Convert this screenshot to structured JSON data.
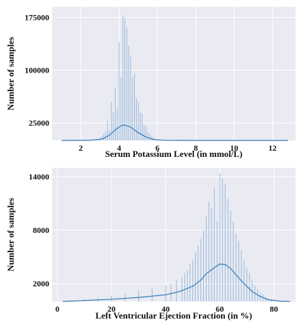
{
  "colors": {
    "background": "#eaeaf2",
    "bar": "#4c8fc7",
    "kde": "#2f78b5",
    "grid": "#ffffff"
  },
  "chart_data": [
    {
      "type": "histogram",
      "title": "",
      "xlabel": "Serum Potassium Level (in mmol/L)",
      "ylabel": "Number of samples",
      "xlim": [
        0.5,
        13.2
      ],
      "ylim": [
        0,
        190000
      ],
      "xticks": [
        2,
        4,
        6,
        8,
        10,
        12
      ],
      "yticks": [
        25000,
        100000,
        175000
      ],
      "grid": true,
      "bars": {
        "x": [
          1.0,
          2.0,
          2.5,
          2.8,
          3.0,
          3.1,
          3.2,
          3.3,
          3.4,
          3.5,
          3.6,
          3.7,
          3.8,
          3.9,
          4.0,
          4.1,
          4.2,
          4.3,
          4.4,
          4.5,
          4.6,
          4.7,
          4.8,
          4.9,
          5.0,
          5.1,
          5.2,
          5.3,
          5.4,
          5.5,
          5.6,
          5.7,
          5.8,
          6.0,
          6.2,
          6.5,
          7.0
        ],
        "values": [
          300,
          800,
          1500,
          3000,
          4500,
          6000,
          9000,
          13000,
          28000,
          15000,
          55000,
          40000,
          75000,
          45000,
          140000,
          90000,
          178000,
          175000,
          160000,
          135000,
          120000,
          90000,
          95000,
          60000,
          55000,
          40000,
          38000,
          22000,
          20000,
          12000,
          10000,
          6000,
          4000,
          2000,
          1000,
          500,
          200
        ]
      },
      "kde": {
        "x": [
          1,
          2,
          2.5,
          3,
          3.2,
          3.4,
          3.6,
          3.8,
          4.0,
          4.2,
          4.4,
          4.6,
          4.8,
          5.0,
          5.2,
          5.4,
          5.6,
          5.8,
          6.0,
          6.5,
          7,
          8,
          10,
          12,
          12.8
        ],
        "values": [
          0,
          50,
          300,
          1500,
          3000,
          6000,
          10000,
          15000,
          19000,
          22000,
          21000,
          19000,
          15000,
          11000,
          8000,
          5000,
          3000,
          1500,
          800,
          200,
          50,
          0,
          0,
          0,
          0
        ]
      }
    },
    {
      "type": "histogram",
      "title": "",
      "xlabel": "Left Ventricular Ejection Fraction (in %)",
      "ylabel": "Number of samples",
      "xlim": [
        -2,
        88
      ],
      "ylim": [
        0,
        15000
      ],
      "xticks": [
        0,
        20,
        40,
        60,
        80
      ],
      "yticks": [
        2000,
        8000,
        14000
      ],
      "grid": true,
      "bars": {
        "x": [
          5,
          10,
          15,
          20,
          25,
          30,
          35,
          40,
          42,
          44,
          46,
          47,
          48,
          49,
          50,
          51,
          52,
          53,
          54,
          55,
          56,
          57,
          58,
          59,
          60,
          61,
          62,
          63,
          64,
          65,
          66,
          67,
          68,
          69,
          70,
          71,
          72,
          73,
          74,
          75,
          76,
          77,
          78,
          79,
          80
        ],
        "values": [
          150,
          250,
          400,
          650,
          900,
          1200,
          1500,
          1800,
          2000,
          2400,
          2700,
          3200,
          3500,
          4200,
          4600,
          5500,
          6200,
          7000,
          8000,
          9500,
          11200,
          10500,
          12800,
          9000,
          14400,
          13800,
          13200,
          11500,
          10200,
          9000,
          7600,
          6800,
          5800,
          4600,
          3800,
          3200,
          2400,
          1800,
          1400,
          1000,
          800,
          500,
          300,
          200,
          100
        ]
      },
      "kde": {
        "x": [
          2,
          10,
          20,
          30,
          40,
          45,
          50,
          53,
          55,
          58,
          60,
          62,
          64,
          66,
          68,
          70,
          72,
          75,
          78,
          82,
          86
        ],
        "values": [
          0,
          100,
          250,
          450,
          750,
          1100,
          1700,
          2400,
          3100,
          3800,
          4200,
          4150,
          3700,
          3000,
          2300,
          1700,
          1100,
          550,
          200,
          40,
          0
        ]
      }
    }
  ]
}
